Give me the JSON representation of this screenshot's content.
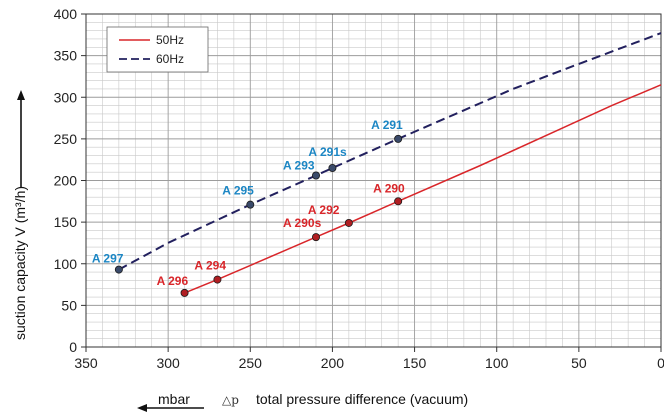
{
  "chart_data": {
    "type": "line",
    "xlabel": "total pressure difference (vacuum)",
    "xlabel_prefix": "△p",
    "x_unit_label": "mbar",
    "ylabel": "suction capacity V (m³/h)",
    "xlim": [
      350,
      0
    ],
    "ylim": [
      0,
      400
    ],
    "x_ticks": [
      350,
      300,
      250,
      200,
      150,
      100,
      50,
      0
    ],
    "y_ticks": [
      0,
      50,
      100,
      150,
      200,
      250,
      300,
      350,
      400
    ],
    "grid": true,
    "legend_position": "top-left",
    "series": [
      {
        "name": "50Hz",
        "color": "#d9262a",
        "style": "solid",
        "points": [
          [
            290,
            65
          ],
          [
            270,
            81
          ],
          [
            210,
            132
          ],
          [
            190,
            149
          ],
          [
            160,
            175
          ],
          [
            110,
            218
          ],
          [
            30,
            290
          ],
          [
            0,
            315
          ]
        ]
      },
      {
        "name": "60Hz",
        "color": "#22205e",
        "style": "dashed",
        "points": [
          [
            330,
            93
          ],
          [
            300,
            125
          ],
          [
            250,
            171
          ],
          [
            210,
            206
          ],
          [
            200,
            215
          ],
          [
            160,
            250
          ],
          [
            90,
            310
          ],
          [
            50,
            340
          ],
          [
            0,
            377
          ]
        ]
      }
    ],
    "annotations": [
      {
        "label": "A 296",
        "x": 290,
        "y": 65,
        "color": "#d9262a",
        "dx": -28,
        "dy": -8
      },
      {
        "label": "A 294",
        "x": 270,
        "y": 81,
        "color": "#d9262a",
        "dx": -23,
        "dy": -10
      },
      {
        "label": "A 290s",
        "x": 210,
        "y": 132,
        "color": "#d9262a",
        "dx": -33,
        "dy": -10
      },
      {
        "label": "A 292",
        "x": 190,
        "y": 149,
        "color": "#d9262a",
        "dx": -41,
        "dy": -9
      },
      {
        "label": "A 290",
        "x": 160,
        "y": 175,
        "color": "#d9262a",
        "dx": -25,
        "dy": -9
      },
      {
        "label": "A 297",
        "x": 330,
        "y": 93,
        "color": "#1b86c4",
        "dx": -27,
        "dy": -7
      },
      {
        "label": "A 295",
        "x": 250,
        "y": 171,
        "color": "#1b86c4",
        "dx": -28,
        "dy": -10
      },
      {
        "label": "A 293",
        "x": 210,
        "y": 206,
        "color": "#1b86c4",
        "dx": -33,
        "dy": -6
      },
      {
        "label": "A 291s",
        "x": 200,
        "y": 215,
        "color": "#1b86c4",
        "dx": -24,
        "dy": -12
      },
      {
        "label": "A 291",
        "x": 160,
        "y": 250,
        "color": "#1b86c4",
        "dx": -27,
        "dy": -10
      }
    ],
    "markers": [
      {
        "series": "50Hz",
        "x": 290,
        "y": 65
      },
      {
        "series": "50Hz",
        "x": 270,
        "y": 81
      },
      {
        "series": "50Hz",
        "x": 210,
        "y": 132
      },
      {
        "series": "50Hz",
        "x": 190,
        "y": 149
      },
      {
        "series": "50Hz",
        "x": 160,
        "y": 175
      },
      {
        "series": "60Hz",
        "x": 330,
        "y": 93
      },
      {
        "series": "60Hz",
        "x": 250,
        "y": 171
      },
      {
        "series": "60Hz",
        "x": 210,
        "y": 206
      },
      {
        "series": "60Hz",
        "x": 200,
        "y": 215
      },
      {
        "series": "60Hz",
        "x": 160,
        "y": 250
      }
    ]
  }
}
